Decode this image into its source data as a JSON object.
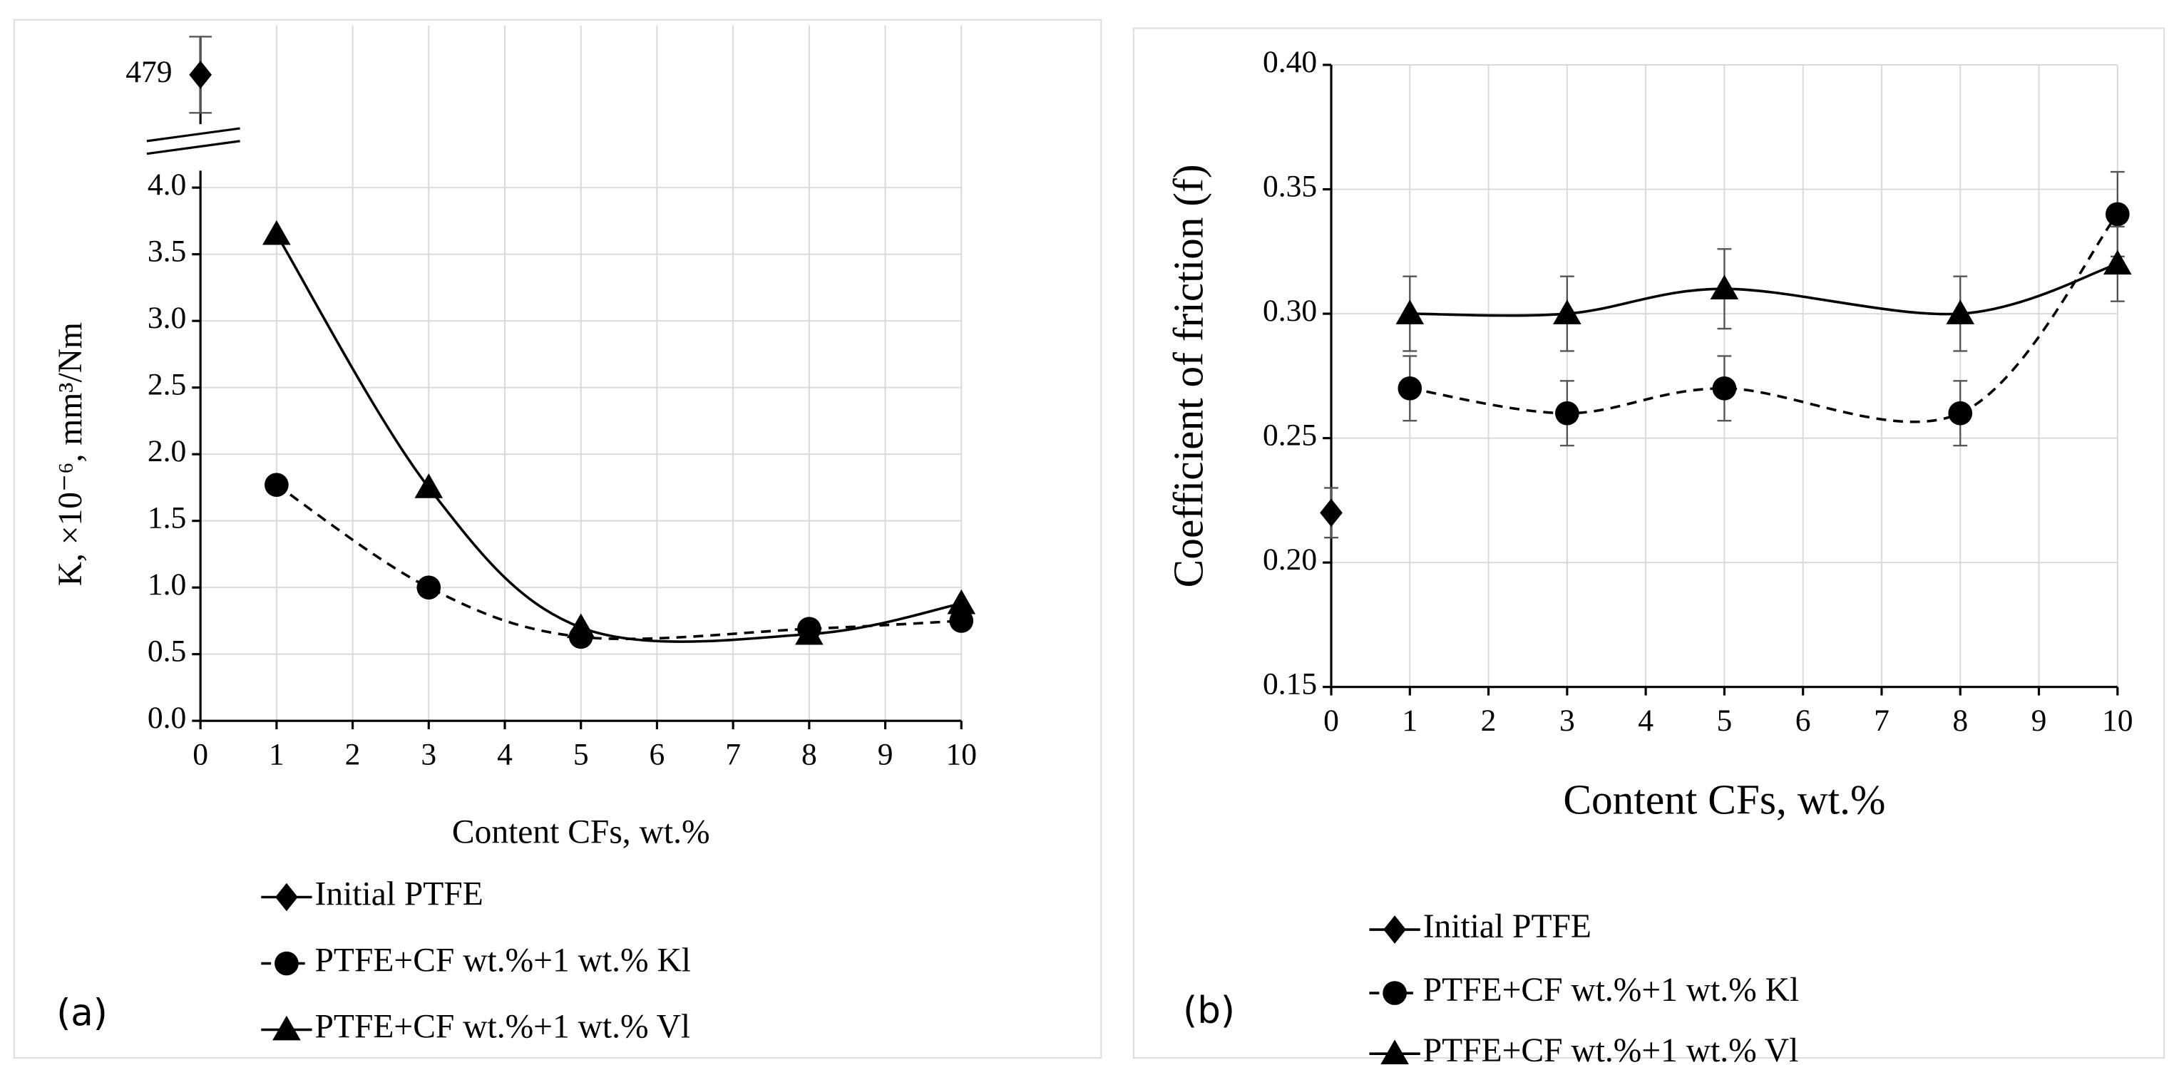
{
  "chart_data": [
    {
      "type": "line",
      "panel_label": "(a)",
      "y_label": "K, ×10⁻⁶, mm³/Nm",
      "x_label": "Content CFs, wt.%",
      "xlim": [
        0,
        10
      ],
      "xticks": [
        0,
        1,
        2,
        3,
        4,
        5,
        6,
        7,
        8,
        9,
        10
      ],
      "ylim": [
        0,
        4
      ],
      "yticks": [
        {
          "value": 0,
          "label": "0.0"
        },
        0.5,
        {
          "value": 1,
          "label": "1.0"
        },
        1.5,
        {
          "value": 2,
          "label": "2.0"
        },
        2.5,
        {
          "value": 3,
          "label": "3.0"
        },
        3.5,
        {
          "value": 4,
          "label": "4.0"
        }
      ],
      "grid": true,
      "series": [
        {
          "name": "Initial PTFE",
          "color": "#000000",
          "marker": "diamond",
          "x": [
            0
          ],
          "values": [
            479
          ],
          "value_labels": [
            "479"
          ]
        },
        {
          "name": "PTFE+CF wt.%+1 wt.% Kl",
          "color": "#000000",
          "marker": "circle",
          "dash": true,
          "x": [
            1,
            3,
            5,
            8,
            10
          ],
          "values": [
            1.77,
            1.0,
            0.63,
            0.69,
            0.75
          ]
        },
        {
          "name": "PTFE+CF wt.%+1 wt.% Vl",
          "color": "#000000",
          "marker": "triangle",
          "x": [
            1,
            3,
            5,
            8,
            10
          ],
          "values": [
            3.65,
            1.75,
            0.7,
            0.65,
            0.88
          ]
        }
      ]
    },
    {
      "type": "line",
      "panel_label": "(b)",
      "y_label": "Coefficient of friction (f)",
      "x_label": "Content CFs, wt.%",
      "xlim": [
        0,
        10
      ],
      "xticks": [
        0,
        1,
        2,
        3,
        4,
        5,
        6,
        7,
        8,
        9,
        10
      ],
      "ylim": [
        0.15,
        0.4
      ],
      "yticks": [
        0.15,
        {
          "value": 0.2,
          "label": "0.20"
        },
        0.25,
        {
          "value": 0.3,
          "label": "0.30"
        },
        0.35,
        {
          "value": 0.4,
          "label": "0.40"
        }
      ],
      "grid": true,
      "series": [
        {
          "name": "Initial PTFE",
          "color": "#000000",
          "marker": "diamond",
          "x": [
            0
          ],
          "values": [
            0.22
          ],
          "errors": [
            0.01
          ]
        },
        {
          "name": "PTFE+CF wt.%+1 wt.% Kl",
          "color": "#000000",
          "marker": "circle",
          "dash": true,
          "x": [
            1,
            3,
            5,
            8,
            10
          ],
          "values": [
            0.27,
            0.26,
            0.27,
            0.26,
            0.34
          ],
          "errors": [
            0.013,
            0.013,
            0.013,
            0.013,
            0.017
          ]
        },
        {
          "name": "PTFE+CF wt.%+1 wt.% Vl",
          "color": "#000000",
          "marker": "triangle",
          "x": [
            1,
            3,
            5,
            8,
            10
          ],
          "values": [
            0.3,
            0.3,
            0.31,
            0.3,
            0.32
          ],
          "errors": [
            0.015,
            0.015,
            0.016,
            0.015,
            0.015
          ]
        }
      ]
    }
  ]
}
